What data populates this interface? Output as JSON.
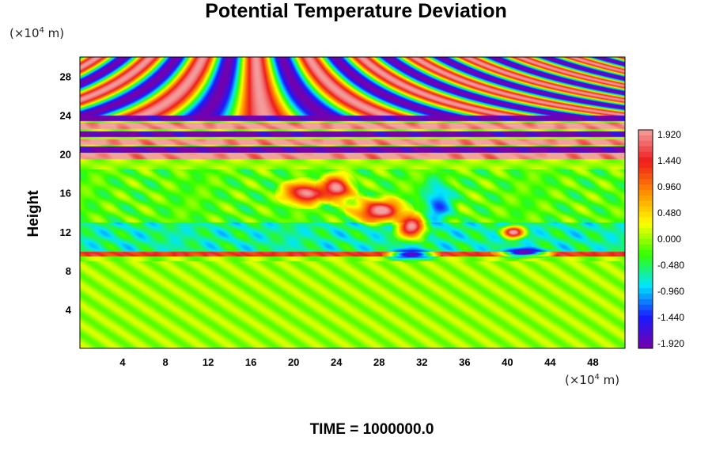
{
  "chart_data": {
    "type": "heatmap",
    "title": "Potential Temperature Deviation",
    "ylabel": "Height",
    "xlabel": "",
    "x_unit_prefix": "(×10",
    "x_unit_exp": "4",
    "x_unit_suffix": " m)",
    "y_unit_prefix": "(×10",
    "y_unit_exp": "4",
    "y_unit_suffix": " m)",
    "xlim": [
      0,
      51
    ],
    "ylim": [
      0,
      30
    ],
    "x_ticks": [
      4,
      8,
      12,
      16,
      20,
      24,
      28,
      32,
      36,
      40,
      44,
      48
    ],
    "y_ticks": [
      4,
      8,
      12,
      16,
      20,
      24,
      28
    ],
    "colorbar": {
      "range": [
        -1.92,
        1.92
      ],
      "tick_labels": [
        "1.920",
        "1.440",
        "0.960",
        "0.480",
        "0.000",
        "-0.480",
        "-0.960",
        "-1.440",
        "-1.920"
      ],
      "tick_values": [
        1.92,
        1.44,
        0.96,
        0.48,
        0.0,
        -0.48,
        -0.96,
        -1.44,
        -1.92
      ]
    },
    "colors": {
      "max": "#f4a0a0",
      "high": "#ee1c1c",
      "orange": "#ff8c00",
      "yellow": "#ffff00",
      "zero": "#33ff00",
      "cyan": "#00e5ff",
      "blue": "#1a1aff",
      "min": "#7700aa"
    },
    "features": [
      {
        "kind": "band",
        "y_bottom": 0,
        "y_top": 9,
        "value": 0.0
      },
      {
        "kind": "band",
        "y_bottom": 9.5,
        "y_top": 10,
        "value": 1.3
      },
      {
        "kind": "band",
        "y_bottom": 10,
        "y_top": 13,
        "value": -0.6
      },
      {
        "kind": "band",
        "y_bottom": 13,
        "y_top": 18.5,
        "value": -0.2
      },
      {
        "kind": "band",
        "y_bottom": 19.5,
        "y_top": 20.1,
        "value": 1.9
      },
      {
        "kind": "band",
        "y_bottom": 20.2,
        "y_top": 20.8,
        "value": -1.9
      },
      {
        "kind": "band",
        "y_bottom": 21.0,
        "y_top": 21.6,
        "value": 1.9
      },
      {
        "kind": "band",
        "y_bottom": 21.8,
        "y_top": 22.4,
        "value": -1.9
      },
      {
        "kind": "band",
        "y_bottom": 22.6,
        "y_top": 23.3,
        "value": 1.9
      },
      {
        "kind": "band",
        "y_bottom": 23.4,
        "y_top": 24.0,
        "value": -1.9
      },
      {
        "kind": "waves",
        "y_bottom": 24,
        "y_top": 30,
        "amplitude": 1.9
      },
      {
        "kind": "blob",
        "x": 21,
        "y": 16,
        "rx": 2.2,
        "ry": 1.3,
        "value": 1.92
      },
      {
        "kind": "blob",
        "x": 24,
        "y": 16.5,
        "rx": 1.6,
        "ry": 1.5,
        "value": 1.92
      },
      {
        "kind": "blob",
        "x": 28,
        "y": 14.2,
        "rx": 2.6,
        "ry": 1.3,
        "value": 1.92
      },
      {
        "kind": "blob",
        "x": 31,
        "y": 12.5,
        "rx": 1.5,
        "ry": 1.4,
        "value": 1.92
      },
      {
        "kind": "blob",
        "x": 31,
        "y": 9.7,
        "rx": 2.2,
        "ry": 0.6,
        "value": -1.92
      },
      {
        "kind": "blob",
        "x": 33.5,
        "y": 15.0,
        "rx": 1.5,
        "ry": 2.5,
        "value": -1.2
      },
      {
        "kind": "blob",
        "x": 40.5,
        "y": 12.0,
        "rx": 1.2,
        "ry": 0.7,
        "value": 1.92
      },
      {
        "kind": "blob",
        "x": 41.5,
        "y": 9.9,
        "rx": 2.5,
        "ry": 0.5,
        "value": -1.92
      }
    ]
  },
  "footer": {
    "time_label": "TIME = 1000000.0"
  }
}
